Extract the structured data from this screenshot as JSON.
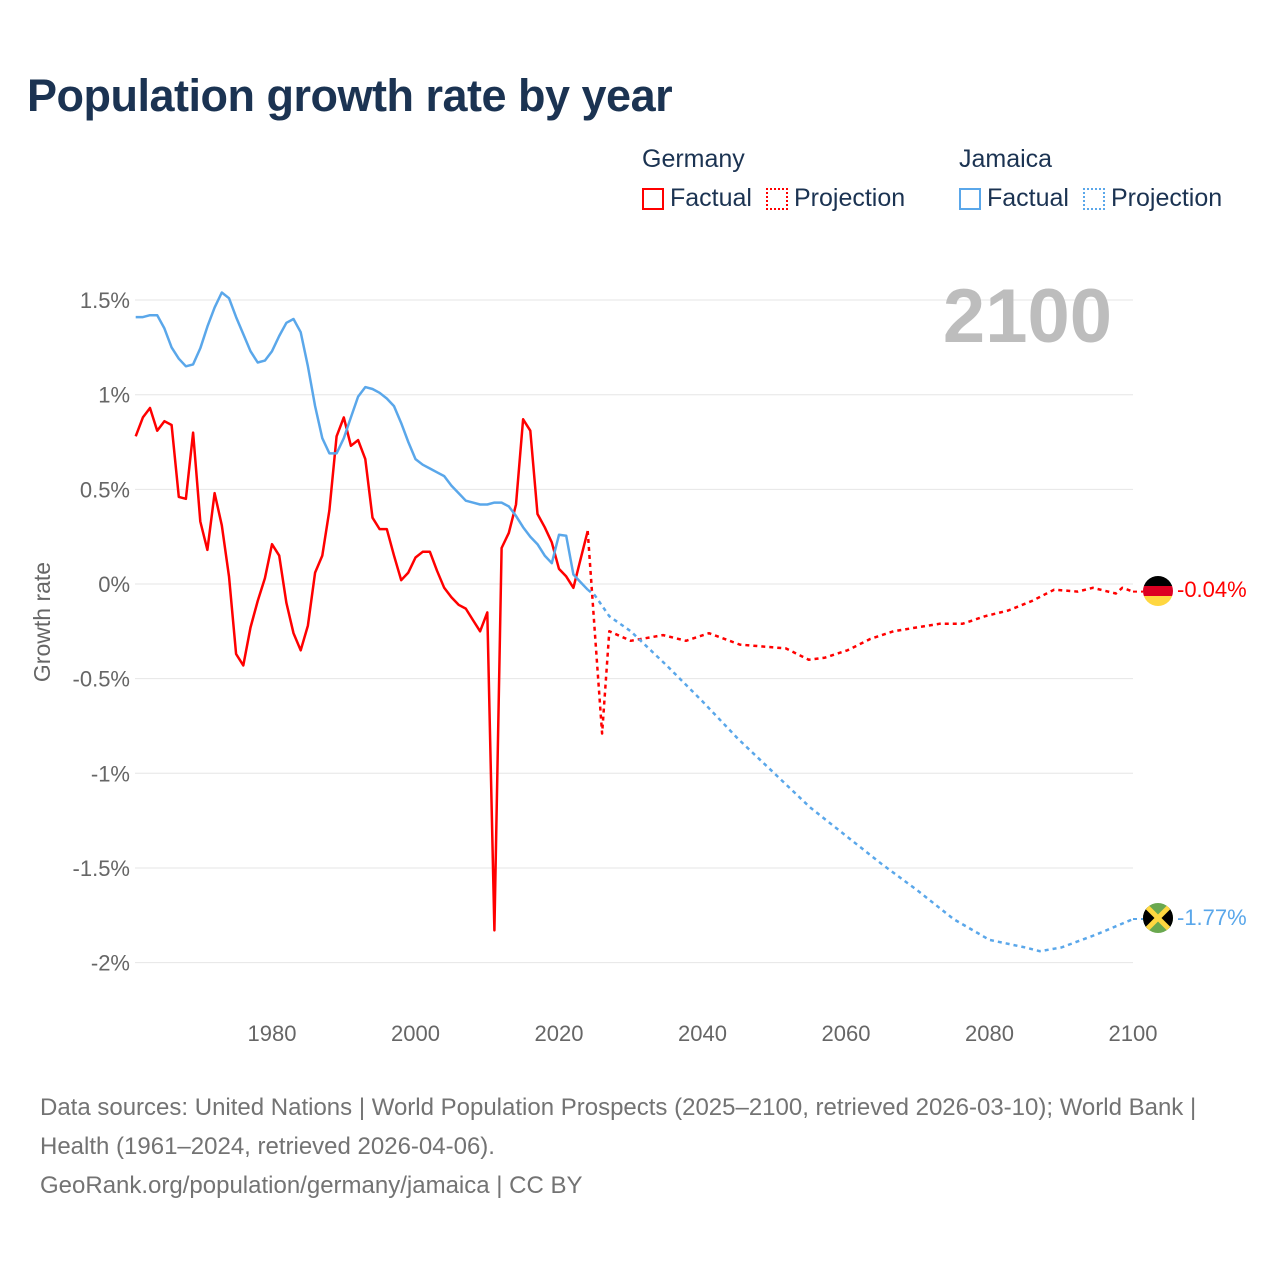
{
  "title": "Population growth rate by year",
  "legend": {
    "groups": [
      {
        "name": "Germany",
        "color": "#ff0000",
        "factual": "Factual",
        "projection": "Projection"
      },
      {
        "name": "Jamaica",
        "color": "#5aa7ea",
        "factual": "Factual",
        "projection": "Projection"
      }
    ]
  },
  "current_year": "2100",
  "end_labels": {
    "germany": "-0.04%",
    "jamaica": "-1.77%"
  },
  "footer": {
    "sources": "Data sources: United Nations | World Population Prospects (2025–2100, retrieved 2026-03-10); World Bank | Health (1961–2024, retrieved 2026-04-06).",
    "credit": "GeoRank.org/population/germany/jamaica | CC BY"
  },
  "chart_data": {
    "type": "line",
    "title": "Population growth rate by year",
    "xlabel": "",
    "ylabel": "Growth rate",
    "xlim": [
      1961,
      2100
    ],
    "ylim": [
      -2.1,
      1.6
    ],
    "xticks": [
      1980,
      2000,
      2020,
      2040,
      2060,
      2080,
      2100
    ],
    "yticks": [
      {
        "v": 1.5,
        "label": "1.5%"
      },
      {
        "v": 1,
        "label": "1%"
      },
      {
        "v": 0.5,
        "label": "0.5%"
      },
      {
        "v": 0,
        "label": "0%"
      },
      {
        "v": -0.5,
        "label": "-0.5%"
      },
      {
        "v": -1,
        "label": "-1%"
      },
      {
        "v": -1.5,
        "label": "-1.5%"
      },
      {
        "v": -2,
        "label": "-2%"
      }
    ],
    "grid": true,
    "series": [
      {
        "name": "Germany Factual",
        "color": "#ff0000",
        "dashed": false,
        "x": [
          1961,
          1962,
          1963,
          1964,
          1965,
          1966,
          1967,
          1968,
          1969,
          1970,
          1971,
          1972,
          1973,
          1974,
          1975,
          1976,
          1977,
          1978,
          1979,
          1980,
          1981,
          1982,
          1983,
          1984,
          1985,
          1986,
          1987,
          1988,
          1989,
          1990,
          1991,
          1992,
          1993,
          1994,
          1995,
          1996,
          1997,
          1998,
          1999,
          2000,
          2001,
          2002,
          2003,
          2004,
          2005,
          2006,
          2007,
          2008,
          2009,
          2010,
          2011,
          2012,
          2013,
          2014,
          2015,
          2016,
          2017,
          2018,
          2019,
          2020,
          2021,
          2022,
          2023,
          2024
        ],
        "y": [
          0.78,
          0.88,
          0.93,
          0.81,
          0.86,
          0.84,
          0.46,
          0.45,
          0.8,
          0.33,
          0.18,
          0.48,
          0.31,
          0.04,
          -0.37,
          -0.43,
          -0.23,
          -0.09,
          0.03,
          0.21,
          0.15,
          -0.1,
          -0.26,
          -0.35,
          -0.22,
          0.06,
          0.15,
          0.39,
          0.78,
          0.88,
          0.73,
          0.76,
          0.66,
          0.35,
          0.29,
          0.29,
          0.15,
          0.02,
          0.06,
          0.14,
          0.17,
          0.17,
          0.07,
          -0.02,
          -0.07,
          -0.11,
          -0.13,
          -0.19,
          -0.25,
          -0.15,
          -1.83,
          0.19,
          0.27,
          0.42,
          0.87,
          0.81,
          0.37,
          0.3,
          0.22,
          0.08,
          0.04,
          -0.02,
          0.13,
          0.28
        ]
      },
      {
        "name": "Germany Projection",
        "color": "#ff0000",
        "dashed": true,
        "x": [
          2024,
          2025,
          2026,
          2027,
          2030,
          2034.5,
          2037.7,
          2040.9,
          2045.2,
          2048.4,
          2051.6,
          2054.8,
          2057,
          2060.2,
          2063.4,
          2066.6,
          2069.8,
          2073,
          2076.2,
          2079.4,
          2082.6,
          2085.9,
          2089,
          2092.3,
          2094.4,
          2097.6,
          2098.5,
          2100
        ],
        "y": [
          0.28,
          -0.26,
          -0.79,
          -0.25,
          -0.3,
          -0.27,
          -0.3,
          -0.26,
          -0.32,
          -0.33,
          -0.34,
          -0.4,
          -0.39,
          -0.35,
          -0.29,
          -0.25,
          -0.23,
          -0.21,
          -0.21,
          -0.17,
          -0.14,
          -0.09,
          -0.03,
          -0.04,
          -0.02,
          -0.05,
          -0.02,
          -0.04
        ]
      },
      {
        "name": "Jamaica Factual",
        "color": "#5aa7ea",
        "dashed": false,
        "x": [
          1961,
          1962,
          1963,
          1964,
          1965,
          1966,
          1967,
          1968,
          1969,
          1970,
          1971,
          1972,
          1973,
          1974,
          1975,
          1976,
          1977,
          1978,
          1979,
          1980,
          1981,
          1982,
          1983,
          1984,
          1985,
          1986,
          1987,
          1988,
          1989,
          1990,
          1991,
          1992,
          1993,
          1994,
          1995,
          1996,
          1997,
          1998,
          1999,
          2000,
          2001,
          2002,
          2003,
          2004,
          2005,
          2006,
          2007,
          2008,
          2009,
          2010,
          2011,
          2012,
          2013,
          2014,
          2015,
          2016,
          2017,
          2018,
          2019,
          2020,
          2021,
          2022,
          2023,
          2024
        ],
        "y": [
          1.41,
          1.41,
          1.42,
          1.42,
          1.35,
          1.25,
          1.19,
          1.15,
          1.16,
          1.245,
          1.36,
          1.46,
          1.54,
          1.51,
          1.41,
          1.32,
          1.23,
          1.17,
          1.18,
          1.23,
          1.31,
          1.38,
          1.4,
          1.33,
          1.15,
          0.94,
          0.77,
          0.69,
          0.69,
          0.77,
          0.88,
          0.99,
          1.04,
          1.03,
          1.01,
          0.98,
          0.94,
          0.85,
          0.75,
          0.66,
          0.63,
          0.61,
          0.59,
          0.57,
          0.52,
          0.48,
          0.44,
          0.43,
          0.42,
          0.42,
          0.43,
          0.43,
          0.41,
          0.36,
          0.3,
          0.25,
          0.21,
          0.15,
          0.11,
          0.26,
          0.255,
          0.05,
          0.01,
          -0.03
        ]
      },
      {
        "name": "Jamaica Projection",
        "color": "#5aa7ea",
        "dashed": true,
        "x": [
          2024,
          2025,
          2027,
          2030,
          2035,
          2040,
          2045,
          2050,
          2055,
          2060,
          2065,
          2070,
          2075,
          2080,
          2085,
          2087,
          2090,
          2095,
          2100
        ],
        "y": [
          -0.03,
          -0.06,
          -0.17,
          -0.25,
          -0.43,
          -0.62,
          -0.82,
          -1.0,
          -1.18,
          -1.33,
          -1.48,
          -1.62,
          -1.77,
          -1.88,
          -1.92,
          -1.94,
          -1.92,
          -1.85,
          -1.77
        ]
      }
    ]
  }
}
